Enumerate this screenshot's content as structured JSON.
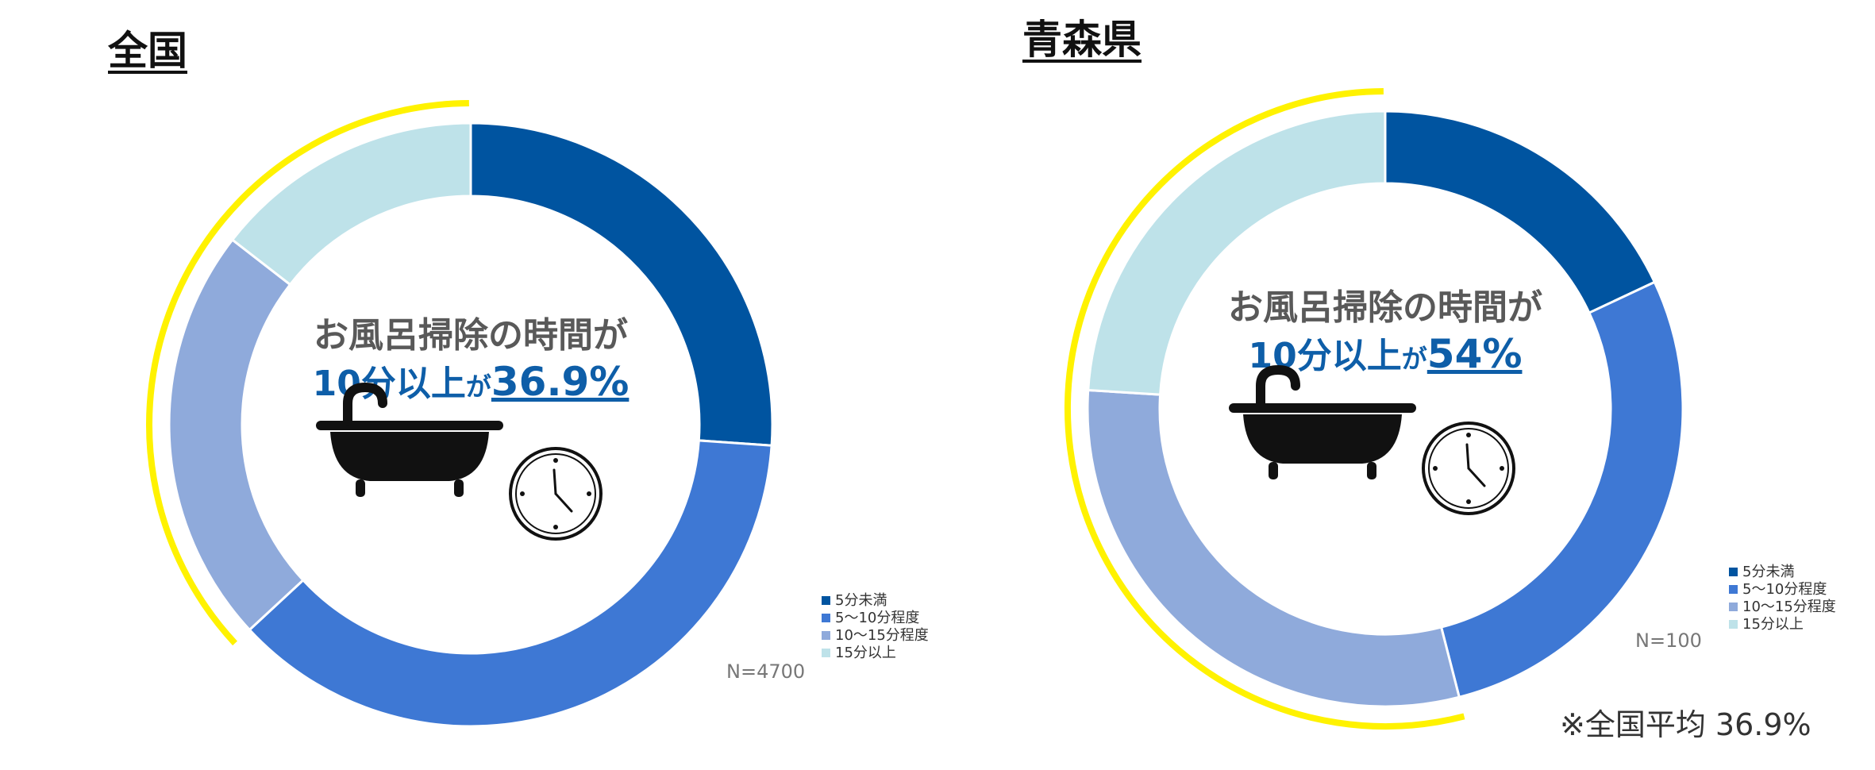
{
  "colors": {
    "s1": "#0054A0",
    "s2": "#3E78D4",
    "s3": "#8FAADB",
    "s4": "#BEE2E9",
    "highlight": "#FFF200",
    "center_text": "#595959",
    "accent_text": "#0E5EA8"
  },
  "legend": [
    "5分未満",
    "5～10分程度",
    "10～15分程度",
    "15分以上"
  ],
  "chart_data": [
    {
      "type": "pie",
      "title": "全国",
      "categories": [
        "5分未満",
        "5～10分程度",
        "10～15分程度",
        "15分以上"
      ],
      "values": [
        26.1,
        37.0,
        22.4,
        14.5
      ],
      "n_label": "N=4700",
      "center": {
        "line1": "お風呂掃除の時間が",
        "line2_prefix": "10分以上",
        "line2_ga": "が",
        "line2_value": "36.9%"
      },
      "highlight_series": "10分以上"
    },
    {
      "type": "pie",
      "title": "青森県",
      "categories": [
        "5分未満",
        "5～10分程度",
        "10～15分程度",
        "15分以上"
      ],
      "values": [
        18,
        28,
        30,
        24
      ],
      "n_label": "N=100",
      "center": {
        "line1": "お風呂掃除の時間が",
        "line2_prefix": "10分以上",
        "line2_ga": "が",
        "line2_value": "54%"
      },
      "highlight_series": "10分以上"
    }
  ],
  "footnote": "※全国平均 36.9%"
}
